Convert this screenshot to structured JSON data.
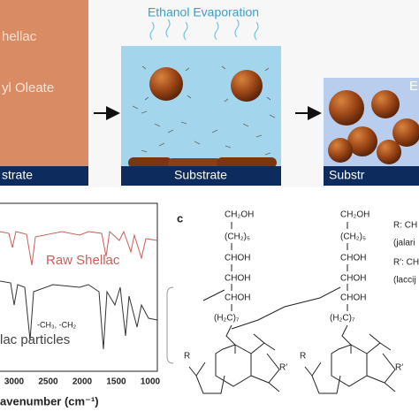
{
  "panel_a": {
    "step1": {
      "labels": [
        "hellac",
        "yl Oleate"
      ],
      "substrate": "strate"
    },
    "step2": {
      "title": "Ethanol Evaporation",
      "substrate": "Substrate"
    },
    "step3": {
      "label": "E",
      "substrate": "Substr"
    }
  },
  "panel_b": {
    "series": [
      "Raw Shellac",
      "lac particles"
    ],
    "annotation": "-CH₃, -CH₂",
    "x_ticks": [
      "3000",
      "2500",
      "2000",
      "1500",
      "1000"
    ],
    "x_label": "avenumber (cm⁻¹)"
  },
  "panel_c": {
    "label": "c",
    "structure_1": [
      "CH₂OH",
      "(CH₂)₅",
      "CHOH",
      "CHOH",
      "CHOH",
      "(H₂C)₇",
      "R",
      "R′"
    ],
    "structure_2": [
      "CH₂OH",
      "(CH₂)₅",
      "CHOH",
      "CHOH",
      "CHOH",
      "(H₂C)₇",
      "R",
      "R′"
    ],
    "legend": [
      "R: CH",
      "(jalari",
      "R′: CH",
      "(laccij"
    ]
  }
}
